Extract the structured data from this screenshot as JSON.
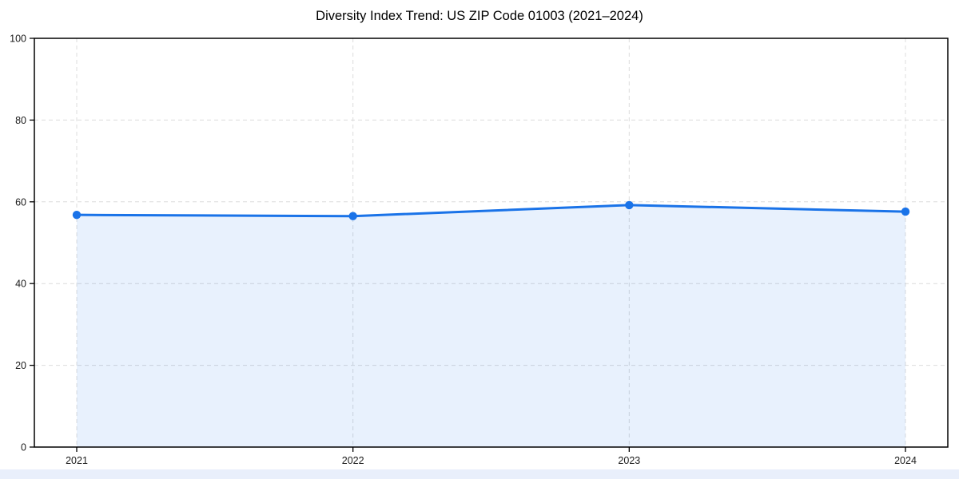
{
  "chart_data": {
    "type": "area",
    "title": "Diversity Index Trend: US ZIP Code 01003 (2021–2024)",
    "categories": [
      "2021",
      "2022",
      "2023",
      "2024"
    ],
    "values": [
      56.8,
      56.5,
      59.2,
      57.6
    ],
    "xlabel": "",
    "ylabel": "",
    "ylim": [
      0,
      100
    ],
    "yticks": [
      0,
      20,
      40,
      60,
      80,
      100
    ],
    "grid": {
      "show": true,
      "style": "dashed",
      "color": "#dcdcdc"
    },
    "legend_position": "none",
    "colors": {
      "line": "#1a73e8",
      "marker": "#1a73e8",
      "fill": "rgba(26,115,232,0.10)",
      "spine": "#000000",
      "tick_label": "#1a1a1a",
      "title": "#000000",
      "background": "#ffffff",
      "bottom_strip": "#e9effb"
    }
  }
}
